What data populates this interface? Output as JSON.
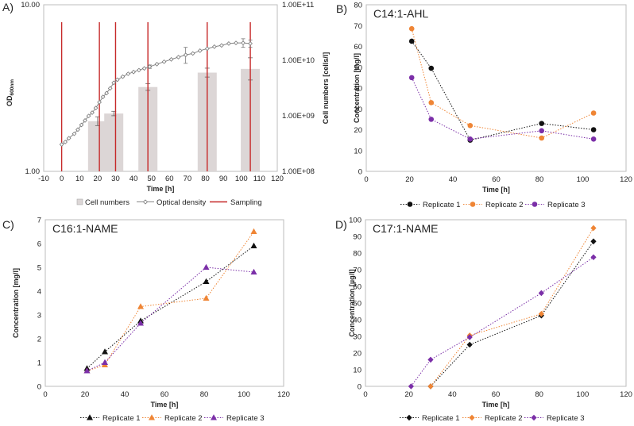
{
  "chart_data": [
    {
      "id": "A",
      "panel_label": "A)",
      "type": "bar+line",
      "title": "",
      "xlabel": "Time [h]",
      "ylabel_main": "OD",
      "ylabel_sub": "600nm",
      "ylabel_right": "Cell numbers [cells/l]",
      "xlim": [
        -10,
        120
      ],
      "x_ticks": [
        -10,
        0,
        10,
        20,
        30,
        40,
        50,
        60,
        70,
        80,
        90,
        100,
        110,
        120
      ],
      "x_tick_labels": [
        "-10",
        "0",
        "10",
        "20",
        "30",
        "40",
        "50",
        "60",
        "70",
        "80",
        "90",
        "100",
        "110",
        "120"
      ],
      "ylim_left": [
        1,
        10
      ],
      "y_left_ticks": [
        1,
        10
      ],
      "y_left_tick_labels": [
        "1.00",
        "10.00"
      ],
      "ylim_right": [
        100000000,
        100000000000
      ],
      "y_right_ticks": [
        100000000,
        1000000000,
        10000000000,
        100000000000
      ],
      "y_right_tick_labels": [
        "1.00E+08",
        "1.00E+09",
        "1.00E+10",
        "1.00E+11"
      ],
      "bars": {
        "name": "Cell numbers",
        "x": [
          20,
          29,
          48,
          81,
          105
        ],
        "values": [
          800000000,
          1100000000,
          3300000000,
          6000000000,
          7000000000
        ],
        "errors": [
          0.08,
          0.04,
          0.06,
          0.08,
          0.2
        ]
      },
      "od": {
        "name": "Optical density",
        "x": [
          0,
          2,
          4,
          7,
          9,
          11,
          13,
          15,
          17,
          19,
          21,
          23,
          25,
          27,
          29,
          31,
          34,
          37,
          40,
          43,
          46,
          49,
          53,
          57,
          61,
          65,
          69,
          73,
          77,
          81,
          85,
          89,
          93,
          97,
          101,
          105
        ],
        "values": [
          1.45,
          1.5,
          1.58,
          1.68,
          1.78,
          1.9,
          2.02,
          2.15,
          2.25,
          2.4,
          2.6,
          2.8,
          2.95,
          3.15,
          3.4,
          3.55,
          3.7,
          3.85,
          3.95,
          4.05,
          4.15,
          4.25,
          4.4,
          4.55,
          4.7,
          4.85,
          5.0,
          5.1,
          5.3,
          5.45,
          5.6,
          5.7,
          5.85,
          5.9,
          5.9,
          5.85
        ],
        "errors": [
          0,
          0,
          0,
          0,
          0,
          0,
          0,
          0,
          0,
          0,
          0,
          0,
          0,
          0,
          0,
          0,
          0,
          0,
          0,
          0,
          0,
          0.1,
          0,
          0,
          0,
          0,
          0.55,
          0,
          0,
          0,
          0,
          0,
          0,
          0,
          0.35,
          0.3
        ]
      },
      "sampling": {
        "name": "Sampling",
        "x": [
          0,
          21,
          30,
          48,
          81,
          105
        ]
      },
      "legend": [
        "Cell numbers",
        "Optical density",
        "Sampling"
      ]
    },
    {
      "id": "B",
      "panel_label": "B)",
      "type": "line",
      "title": "C14:1-AHL",
      "xlabel": "Time [h]",
      "ylabel": "Concentration [mg/l]",
      "xlim": [
        0,
        120
      ],
      "ylim": [
        0,
        80
      ],
      "x_ticks": [
        0,
        20,
        40,
        60,
        80,
        100,
        120
      ],
      "x_tick_labels": [
        "0",
        "20",
        "40",
        "60",
        "80",
        "100",
        "120"
      ],
      "y_ticks": [
        0,
        10,
        20,
        30,
        40,
        50,
        60,
        70,
        80
      ],
      "y_tick_labels": [
        "0",
        "10",
        "20",
        "30",
        "40",
        "50",
        "60",
        "70",
        "80"
      ],
      "series": [
        {
          "name": "Replicate 1",
          "color": "#111111",
          "marker": "circle",
          "x": [
            21,
            30,
            48,
            81,
            105
          ],
          "values": [
            62.5,
            49.5,
            15,
            23,
            20
          ]
        },
        {
          "name": "Replicate 2",
          "color": "#ef8535",
          "marker": "circle",
          "x": [
            21,
            30,
            48,
            81,
            105
          ],
          "values": [
            68.5,
            33,
            22,
            16,
            28
          ]
        },
        {
          "name": "Replicate 3",
          "color": "#7b2fa8",
          "marker": "circle",
          "x": [
            21,
            30,
            48,
            81,
            105
          ],
          "values": [
            45,
            25,
            15.5,
            19.5,
            15.5
          ]
        }
      ]
    },
    {
      "id": "C",
      "panel_label": "C)",
      "type": "line",
      "title": "C16:1-NAME",
      "xlabel": "Time [h]",
      "ylabel": "Concentration [mg/l]",
      "xlim": [
        0,
        120
      ],
      "ylim": [
        0,
        7
      ],
      "x_ticks": [
        0,
        20,
        40,
        60,
        80,
        100,
        120
      ],
      "x_tick_labels": [
        "0",
        "20",
        "40",
        "60",
        "80",
        "100",
        "120"
      ],
      "y_ticks": [
        0,
        1,
        2,
        3,
        4,
        5,
        6,
        7
      ],
      "y_tick_labels": [
        "0",
        "1",
        "2",
        "3",
        "4",
        "5",
        "6",
        "7"
      ],
      "series": [
        {
          "name": "Replicate 1",
          "color": "#111111",
          "marker": "triangle",
          "x": [
            21,
            30,
            48,
            81,
            105
          ],
          "values": [
            0.75,
            1.45,
            2.75,
            4.4,
            5.9
          ]
        },
        {
          "name": "Replicate 2",
          "color": "#ef8535",
          "marker": "triangle",
          "x": [
            21,
            30,
            48,
            81,
            105
          ],
          "values": [
            0.65,
            0.9,
            3.35,
            3.7,
            6.5
          ]
        },
        {
          "name": "Replicate 3",
          "color": "#7b2fa8",
          "marker": "triangle",
          "x": [
            21,
            30,
            48,
            81,
            105
          ],
          "values": [
            0.65,
            1.0,
            2.65,
            5.0,
            4.8
          ]
        }
      ]
    },
    {
      "id": "D",
      "panel_label": "D)",
      "type": "line",
      "title": "C17:1-NAME",
      "xlabel": "Time [h]",
      "ylabel": "Concentration [µg/l]",
      "xlim": [
        0,
        120
      ],
      "ylim": [
        0,
        100
      ],
      "x_ticks": [
        0,
        20,
        40,
        60,
        80,
        100,
        120
      ],
      "x_tick_labels": [
        "0",
        "20",
        "40",
        "60",
        "80",
        "100",
        "120"
      ],
      "y_ticks": [
        0,
        10,
        20,
        30,
        40,
        50,
        60,
        70,
        80,
        90,
        100
      ],
      "y_tick_labels": [
        "0",
        "10",
        "20",
        "30",
        "40",
        "50",
        "60",
        "70",
        "80",
        "90",
        "100"
      ],
      "series": [
        {
          "name": "Replicate 1",
          "color": "#111111",
          "marker": "diamond",
          "x": [
            30,
            48,
            81,
            105
          ],
          "values": [
            0,
            25,
            42.5,
            87
          ]
        },
        {
          "name": "Replicate 2",
          "color": "#ef8535",
          "marker": "diamond",
          "x": [
            30,
            48,
            81,
            105
          ],
          "values": [
            0,
            30.5,
            43.5,
            95
          ]
        },
        {
          "name": "Replicate 3",
          "color": "#7b2fa8",
          "marker": "diamond",
          "x": [
            21,
            30,
            48,
            81,
            105
          ],
          "values": [
            0,
            16,
            29.5,
            56,
            77.5
          ]
        }
      ]
    }
  ]
}
